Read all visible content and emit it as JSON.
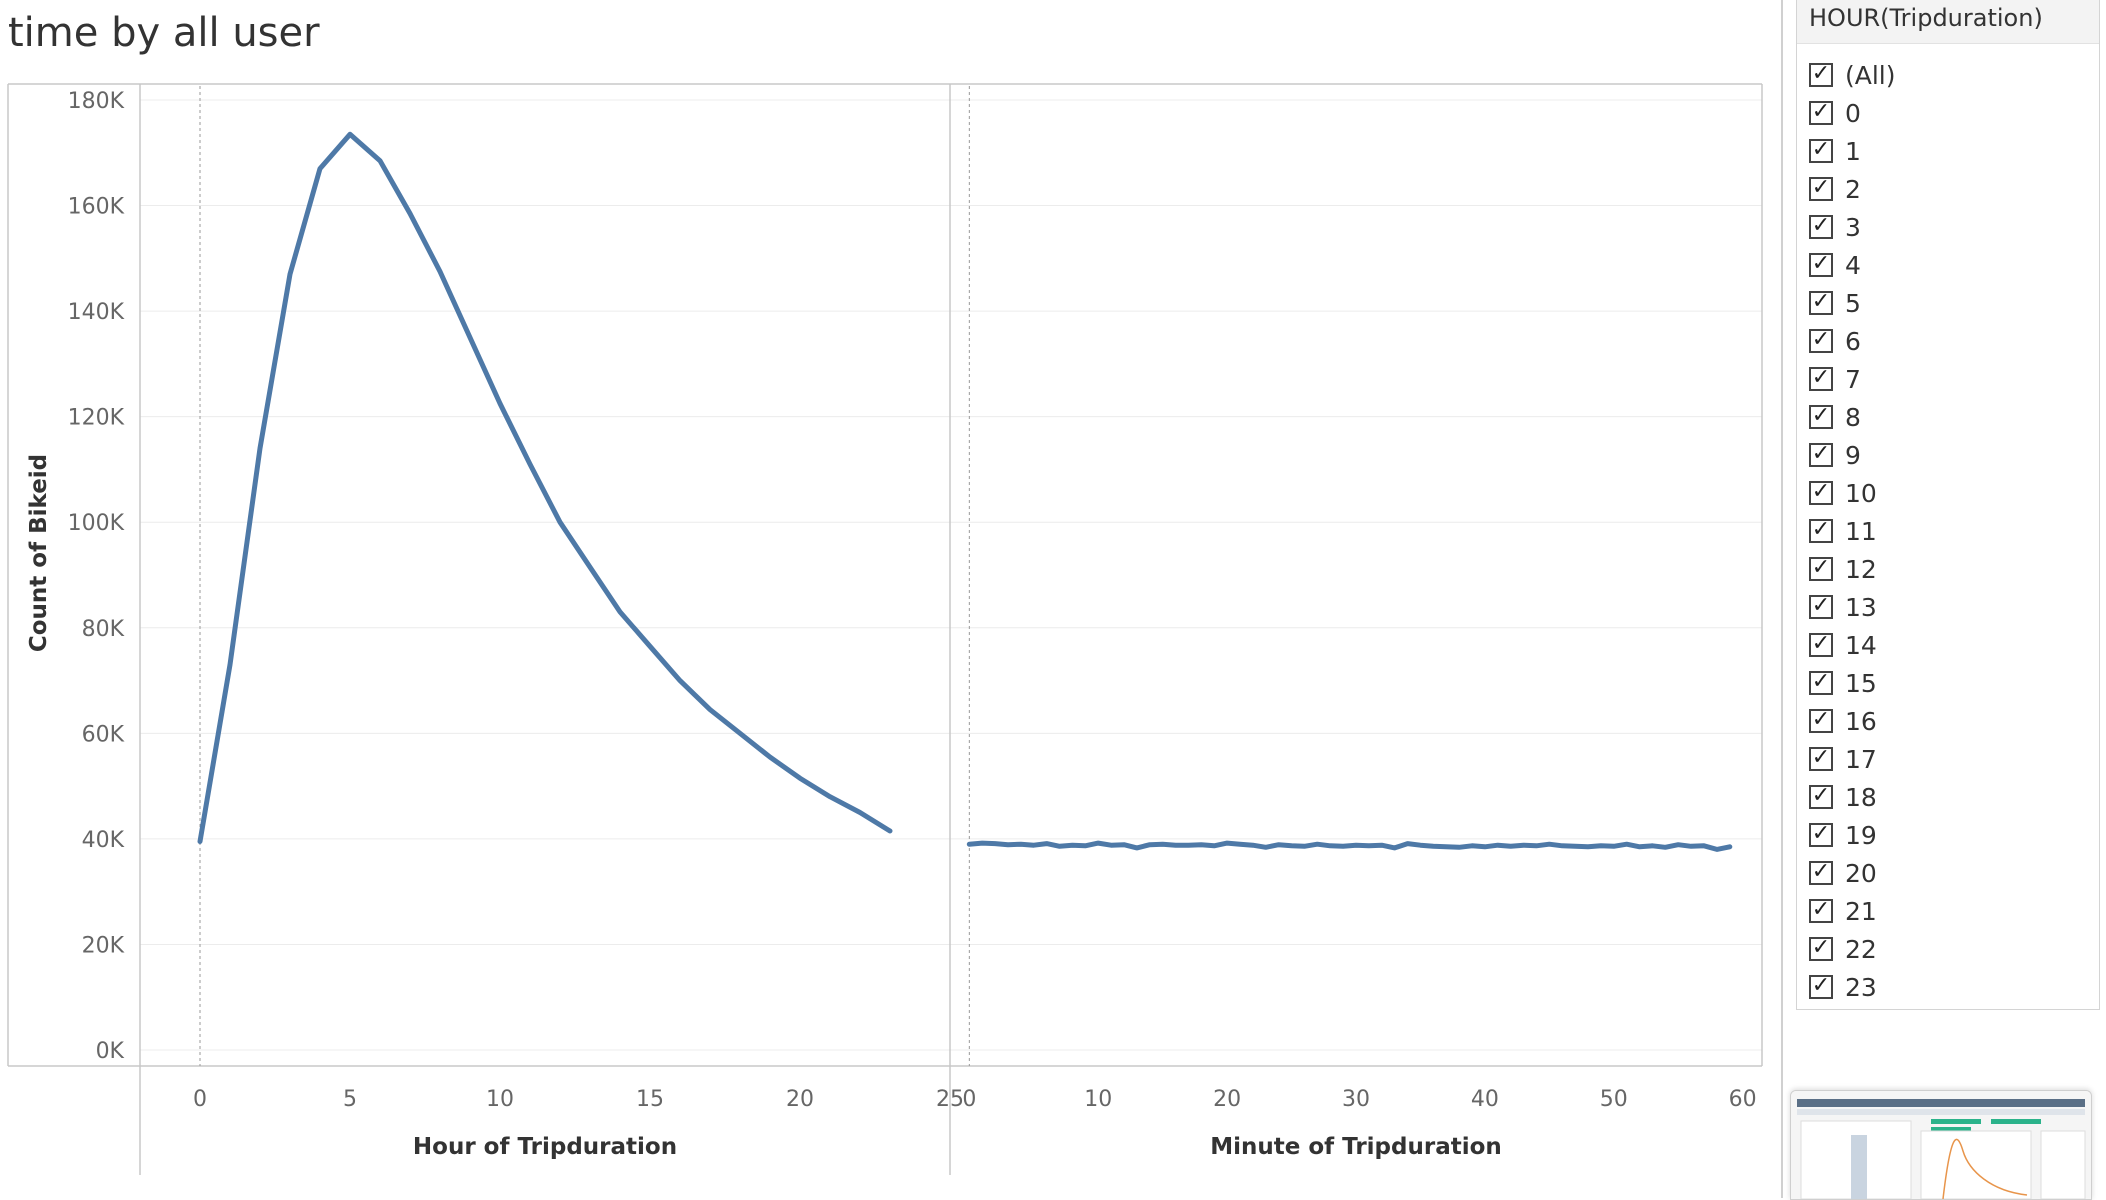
{
  "title": "time by all user",
  "filter": {
    "header": "HOUR(Tripduration)",
    "items": [
      "(All)",
      "0",
      "1",
      "2",
      "3",
      "4",
      "5",
      "6",
      "7",
      "8",
      "9",
      "10",
      "11",
      "12",
      "13",
      "14",
      "15",
      "16",
      "17",
      "18",
      "19",
      "20",
      "21",
      "22",
      "23"
    ],
    "all_checked": true
  },
  "colors": {
    "line": "#4e79a7",
    "grid": "#ececec",
    "axis": "#c8c8c8",
    "zero_line": "#9a9a9a"
  },
  "chart_data": [
    {
      "type": "line",
      "xlabel": "Hour of Tripduration",
      "ylabel": "Count of Bikeid",
      "xlim": [
        -2,
        25
      ],
      "ylim": [
        0,
        180000
      ],
      "xticks": [
        0,
        5,
        10,
        15,
        20,
        25
      ],
      "yticks": [
        0,
        20000,
        40000,
        60000,
        80000,
        100000,
        120000,
        140000,
        160000,
        180000
      ],
      "ytick_labels": [
        "0K",
        "20K",
        "40K",
        "60K",
        "80K",
        "100K",
        "120K",
        "140K",
        "160K",
        "180K"
      ],
      "grid": true,
      "x": [
        0,
        1,
        2,
        3,
        4,
        5,
        6,
        7,
        8,
        9,
        10,
        11,
        12,
        13,
        14,
        15,
        16,
        17,
        18,
        19,
        20,
        21,
        22,
        23
      ],
      "values": [
        39500,
        73000,
        114000,
        147000,
        167000,
        173500,
        168500,
        158500,
        147500,
        135000,
        122500,
        111000,
        100000,
        91500,
        83000,
        76500,
        70000,
        64500,
        60000,
        55500,
        51500,
        48000,
        45000,
        41500
      ]
    },
    {
      "type": "line",
      "xlabel": "Minute of Tripduration",
      "xlim": [
        -1.5,
        61.5
      ],
      "ylim": [
        0,
        180000
      ],
      "xticks": [
        0,
        10,
        20,
        30,
        40,
        50,
        60
      ],
      "grid": true,
      "x": [
        0,
        1,
        2,
        3,
        4,
        5,
        6,
        7,
        8,
        9,
        10,
        11,
        12,
        13,
        14,
        15,
        16,
        17,
        18,
        19,
        20,
        21,
        22,
        23,
        24,
        25,
        26,
        27,
        28,
        29,
        30,
        31,
        32,
        33,
        34,
        35,
        36,
        37,
        38,
        39,
        40,
        41,
        42,
        43,
        44,
        45,
        46,
        47,
        48,
        49,
        50,
        51,
        52,
        53,
        54,
        55,
        56,
        57,
        58,
        59
      ],
      "values": [
        39000,
        39200,
        39100,
        38900,
        39000,
        38800,
        39100,
        38600,
        38800,
        38700,
        39200,
        38800,
        38900,
        38300,
        38900,
        39000,
        38800,
        38800,
        38900,
        38700,
        39200,
        39000,
        38800,
        38400,
        38900,
        38700,
        38600,
        39000,
        38700,
        38600,
        38800,
        38700,
        38800,
        38300,
        39100,
        38800,
        38600,
        38500,
        38400,
        38700,
        38500,
        38800,
        38600,
        38800,
        38700,
        39000,
        38700,
        38600,
        38500,
        38700,
        38600,
        39000,
        38500,
        38700,
        38400,
        38900,
        38600,
        38700,
        38000,
        38500
      ]
    }
  ]
}
